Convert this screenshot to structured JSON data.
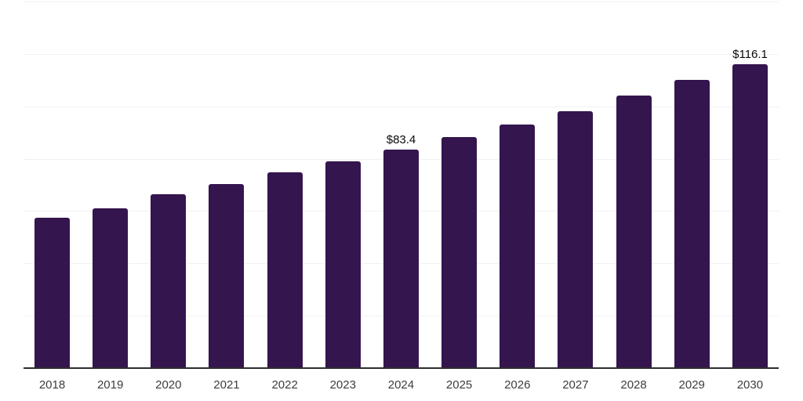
{
  "chart_data": {
    "type": "bar",
    "title": "",
    "xlabel": "",
    "ylabel": "",
    "categories": [
      "2018",
      "2019",
      "2020",
      "2021",
      "2022",
      "2023",
      "2024",
      "2025",
      "2026",
      "2027",
      "2028",
      "2029",
      "2030"
    ],
    "values": [
      57.4,
      61.0,
      66.4,
      70.3,
      74.8,
      79.1,
      83.4,
      88.2,
      93.0,
      98.2,
      104.2,
      110.2,
      116.1
    ],
    "data_labels": [
      {
        "category": "2024",
        "text": "$83.4"
      },
      {
        "category": "2030",
        "text": "$116.1"
      }
    ],
    "ylim": [
      0,
      140
    ],
    "gridline_interval": 20,
    "grid": true,
    "legend": "none",
    "bar_color": "#34154e",
    "gridline_color": "#f1f1f3",
    "axis_line_color": "#2d2d2d",
    "tick_label_color": "#3d3d3d",
    "value_label_color": "#0a0a0a"
  }
}
